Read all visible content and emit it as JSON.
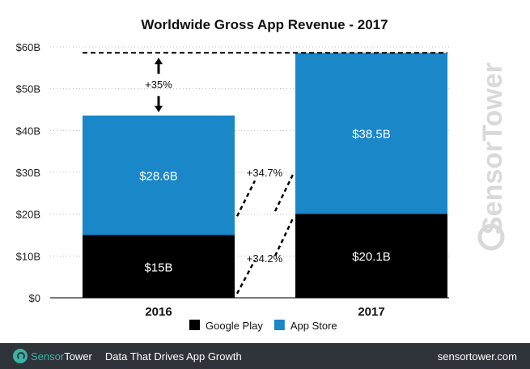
{
  "chart_data": {
    "type": "bar",
    "stacked": true,
    "title": "Worldwide Gross App Revenue - 2017",
    "categories": [
      "2016",
      "2017"
    ],
    "series": [
      {
        "name": "Google Play",
        "color": "#000000",
        "values": [
          15,
          20.1
        ],
        "labels": [
          "$15B",
          "$20.1B"
        ]
      },
      {
        "name": "App Store",
        "color": "#1a87c9",
        "values": [
          28.6,
          38.5
        ],
        "labels": [
          "$28.6B",
          "$38.5B"
        ]
      }
    ],
    "ylim": [
      0,
      60
    ],
    "yticks": [
      0,
      10,
      20,
      30,
      40,
      50,
      60
    ],
    "ytick_labels": [
      "$0",
      "$10B",
      "$20B",
      "$30B",
      "$40B",
      "$50B",
      "$60B"
    ],
    "grid": true,
    "legend": "bottom",
    "annotations": {
      "total_growth": "+35%",
      "app_store_growth": "+34.7%",
      "google_play_growth": "+34.2%"
    }
  },
  "watermark": "SensorTower",
  "footer": {
    "brand_sensor": "Sensor",
    "brand_tower": "Tower",
    "tagline": "Data That Drives App Growth",
    "site": "sensortower.com"
  }
}
